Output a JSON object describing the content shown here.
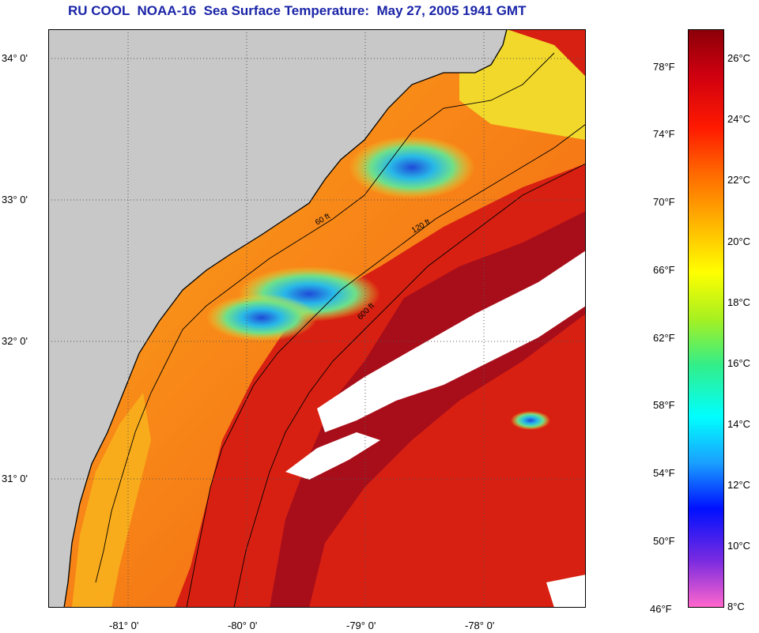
{
  "title": "RU COOL  NOAA-16  Sea Surface Temperature:  May 27, 2005 1941 GMT",
  "map": {
    "lat_ticks": [
      "34° 0'",
      "33° 0'",
      "32° 0'",
      "31° 0'"
    ],
    "lon_ticks": [
      "-81° 0'",
      "-80° 0'",
      "-79° 0'",
      "-78° 0'"
    ],
    "isobaths": [
      "60 ft",
      "120 ft",
      "600 ft"
    ],
    "colors": {
      "land": "#c8c8c8",
      "cloud": "#ffffff",
      "coast": "#000000",
      "graticule": "#555555"
    },
    "sst_colors": {
      "warm_deep": "#b8101c",
      "warm": "#e02a12",
      "mid": "#f25a12",
      "orange": "#f88a18",
      "yellow_orange": "#f8b81c",
      "yellow": "#f2e22a",
      "green": "#6ee08a",
      "cyan": "#28d8e8",
      "blue": "#1f4ad8"
    }
  },
  "colorbar": {
    "fahrenheit_labels": [
      "78°F",
      "74°F",
      "70°F",
      "66°F",
      "62°F",
      "58°F",
      "54°F",
      "50°F",
      "46°F"
    ],
    "celsius_labels": [
      "26°C",
      "24°C",
      "22°C",
      "20°C",
      "18°C",
      "16°C",
      "14°C",
      "12°C",
      "10°C",
      "8°C"
    ],
    "range_c": [
      8,
      27
    ],
    "stops": [
      "#ff66cc",
      "#7a2be0",
      "#0010ff",
      "#1aa0ff",
      "#00ffff",
      "#33ee88",
      "#a8f020",
      "#ffff00",
      "#ffb000",
      "#ff6a00",
      "#ff1a00",
      "#d00010",
      "#8c0008"
    ]
  }
}
